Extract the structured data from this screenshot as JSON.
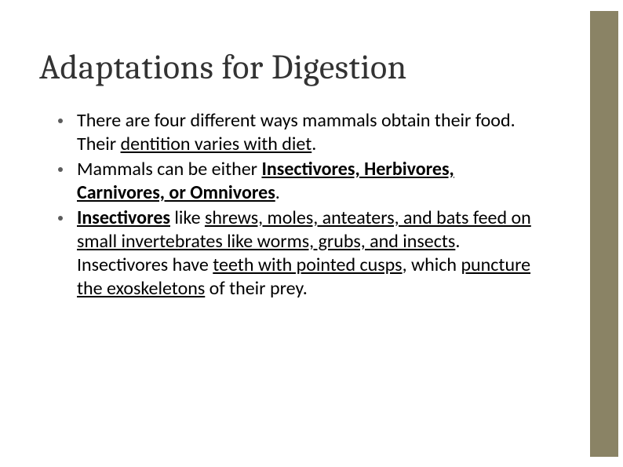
{
  "slide": {
    "title": "Adaptations for Digestion",
    "bullets": [
      {
        "runs": [
          {
            "text": "There are four different ways mammals obtain their food.  Their "
          },
          {
            "text": "dentition varies with diet",
            "underline": true
          },
          {
            "text": "."
          }
        ]
      },
      {
        "runs": [
          {
            "text": "Mammals can be either "
          },
          {
            "text": "Insectivores, Herbivores, Carnivores, or Omnivores",
            "bold": true,
            "underline": true
          },
          {
            "text": "."
          }
        ]
      },
      {
        "runs": [
          {
            "text": "Insectivores",
            "bold": true,
            "underline": true
          },
          {
            "text": " like "
          },
          {
            "text": "shrews, moles, anteaters, and bats feed on small invertebrates like worms, grubs, and insects",
            "underline": true
          },
          {
            "text": ".  Insectivores have "
          },
          {
            "text": "teeth with pointed cusps",
            "underline": true
          },
          {
            "text": ", which "
          },
          {
            "text": "puncture the exoskeletons",
            "underline": true
          },
          {
            "text": " of their prey."
          }
        ]
      }
    ],
    "title_fontsize": 44,
    "body_fontsize": 24,
    "title_color": "#333333",
    "body_color": "#000000",
    "accent_color": "#8a8365",
    "background_color": "#ffffff",
    "bullet_color": "#5c5c5c"
  }
}
